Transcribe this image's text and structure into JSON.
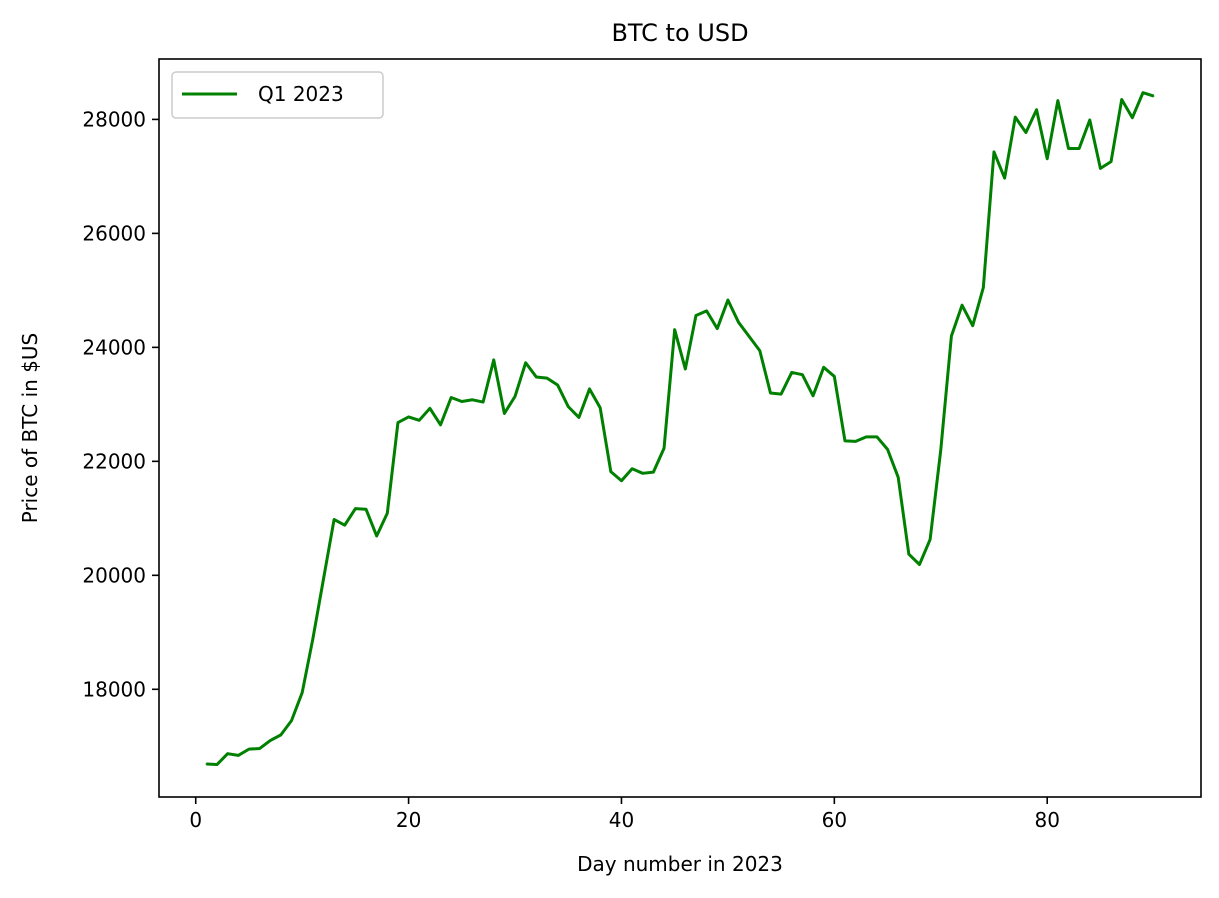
{
  "chart_data": {
    "type": "line",
    "title": "BTC to USD",
    "xlabel": "Day number in 2023",
    "ylabel": "Price of BTC in $US",
    "xlim": [
      -3.45,
      94.45
    ],
    "ylim": [
      16110,
      29060
    ],
    "xticks": [
      0,
      20,
      40,
      60,
      80
    ],
    "yticks": [
      18000,
      20000,
      22000,
      24000,
      26000,
      28000
    ],
    "grid": false,
    "legend": {
      "position": "top-left"
    },
    "series": [
      {
        "name": "Q1 2023",
        "color": "#008000",
        "x": [
          1,
          2,
          3,
          4,
          5,
          6,
          7,
          8,
          9,
          10,
          11,
          12,
          13,
          14,
          15,
          16,
          17,
          18,
          19,
          20,
          21,
          22,
          23,
          24,
          25,
          26,
          27,
          28,
          29,
          30,
          31,
          32,
          33,
          34,
          35,
          36,
          37,
          38,
          39,
          40,
          41,
          42,
          43,
          44,
          45,
          46,
          47,
          48,
          49,
          50,
          51,
          52,
          53,
          54,
          55,
          56,
          57,
          58,
          59,
          60,
          61,
          62,
          63,
          64,
          65,
          66,
          67,
          68,
          69,
          70,
          71,
          72,
          73,
          74,
          75,
          76,
          77,
          78,
          79,
          80,
          81,
          82,
          83,
          84,
          85,
          86,
          87,
          88,
          89,
          90
        ],
        "y": [
          16690,
          16680,
          16870,
          16840,
          16950,
          16960,
          17100,
          17200,
          17450,
          17940,
          18880,
          19930,
          20980,
          20880,
          21170,
          21160,
          20690,
          21090,
          22680,
          22780,
          22720,
          22930,
          22640,
          23120,
          23050,
          23080,
          23040,
          23780,
          22840,
          23140,
          23730,
          23480,
          23460,
          23340,
          22960,
          22770,
          23270,
          22940,
          21820,
          21660,
          21870,
          21790,
          21810,
          22230,
          24310,
          23620,
          24560,
          24640,
          24330,
          24830,
          24440,
          24190,
          23940,
          23200,
          23180,
          23560,
          23520,
          23150,
          23650,
          23490,
          22360,
          22350,
          22430,
          22430,
          22210,
          21720,
          20370,
          20190,
          20630,
          22200,
          24200,
          24740,
          24380,
          25050,
          27430,
          26970,
          28040,
          27770,
          28170,
          27310,
          28330,
          27490,
          27490,
          27990,
          27140,
          27260,
          28350,
          28030,
          28470,
          28410
        ]
      }
    ]
  }
}
